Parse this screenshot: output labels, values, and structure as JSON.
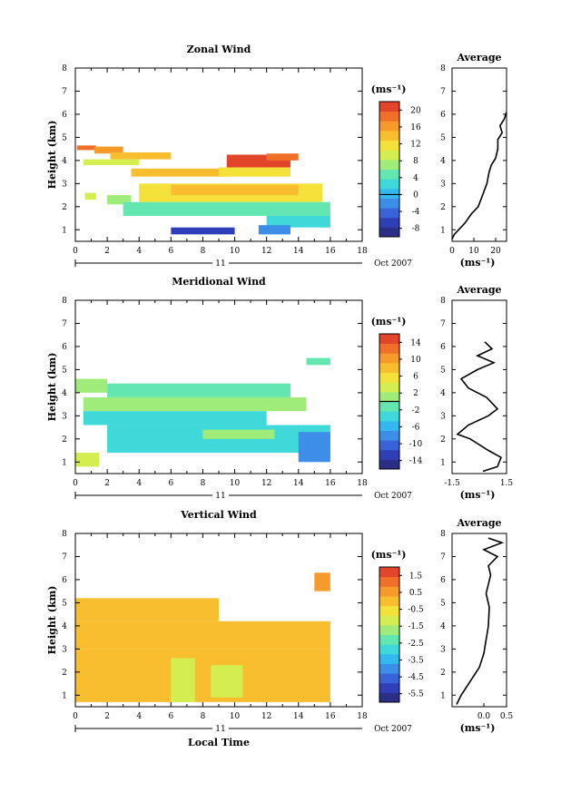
{
  "chart_data": [
    {
      "type": "heatmap",
      "title": "Zonal Wind",
      "ylabel": "Height (km)",
      "xlim": [
        0,
        18
      ],
      "ylim": [
        0.5,
        8
      ],
      "x_ticks": [
        "0",
        "2",
        "4",
        "6",
        "8",
        "10",
        "12",
        "14",
        "16",
        "18"
      ],
      "y_ticks": [
        "1",
        "2",
        "3",
        "4",
        "5",
        "6",
        "7",
        "8"
      ],
      "date_marker": "11",
      "date_label": "Oct 2007",
      "colorbar": {
        "unit": "(ms⁻¹)",
        "ticks": [
          "20",
          "16",
          "12",
          "8",
          "4",
          "0",
          "-4",
          "-8"
        ],
        "min": -10,
        "max": 22
      },
      "regions": [
        {
          "x": [
            0.1,
            1.3
          ],
          "y": [
            4.45,
            4.65
          ],
          "value": 19
        },
        {
          "x": [
            1.2,
            3.0
          ],
          "y": [
            4.3,
            4.6
          ],
          "value": 17
        },
        {
          "x": [
            2.2,
            6.0
          ],
          "y": [
            4.05,
            4.35
          ],
          "value": 13
        },
        {
          "x": [
            0.5,
            4.0
          ],
          "y": [
            3.8,
            4.05
          ],
          "value": 10
        },
        {
          "x": [
            3.5,
            9.5
          ],
          "y": [
            3.3,
            3.65
          ],
          "value": 14
        },
        {
          "x": [
            9.0,
            13.5
          ],
          "y": [
            3.3,
            3.7
          ],
          "value": 12
        },
        {
          "x": [
            9.5,
            13.5
          ],
          "y": [
            3.7,
            4.25
          ],
          "value": 20
        },
        {
          "x": [
            12.0,
            14.0
          ],
          "y": [
            4.0,
            4.3
          ],
          "value": 18
        },
        {
          "x": [
            0.6,
            1.3
          ],
          "y": [
            2.3,
            2.6
          ],
          "value": 9
        },
        {
          "x": [
            2.0,
            3.5
          ],
          "y": [
            2.1,
            2.5
          ],
          "value": 7
        },
        {
          "x": [
            4.0,
            15.5
          ],
          "y": [
            2.2,
            3.0
          ],
          "value": 11
        },
        {
          "x": [
            6.0,
            14.0
          ],
          "y": [
            2.5,
            2.95
          ],
          "value": 13
        },
        {
          "x": [
            3.0,
            16.0
          ],
          "y": [
            1.6,
            2.2
          ],
          "value": 5
        },
        {
          "x": [
            12.0,
            16.0
          ],
          "y": [
            1.1,
            1.6
          ],
          "value": 2
        },
        {
          "x": [
            6.0,
            10.0
          ],
          "y": [
            0.8,
            1.1
          ],
          "value": -6
        },
        {
          "x": [
            11.5,
            13.5
          ],
          "y": [
            0.8,
            1.2
          ],
          "value": -3
        }
      ],
      "profile": {
        "title": "Average",
        "xlabel": "(ms⁻¹)",
        "xlim": [
          0,
          25
        ],
        "x_ticks": [
          "0",
          "10",
          "20"
        ],
        "points": [
          [
            0,
            0.6
          ],
          [
            1,
            0.8
          ],
          [
            3,
            1.0
          ],
          [
            6,
            1.3
          ],
          [
            9,
            1.7
          ],
          [
            12,
            2.0
          ],
          [
            14,
            2.5
          ],
          [
            16,
            3.0
          ],
          [
            17,
            3.5
          ],
          [
            18,
            3.8
          ],
          [
            20,
            4.1
          ],
          [
            21,
            4.5
          ],
          [
            21,
            4.9
          ],
          [
            23,
            5.2
          ],
          [
            22,
            5.5
          ],
          [
            24,
            5.8
          ],
          [
            25,
            6.1
          ]
        ]
      }
    },
    {
      "type": "heatmap",
      "title": "Meridional Wind",
      "ylabel": "Height (km)",
      "xlim": [
        0,
        18
      ],
      "ylim": [
        0.5,
        8
      ],
      "x_ticks": [
        "0",
        "2",
        "4",
        "6",
        "8",
        "10",
        "12",
        "14",
        "16",
        "18"
      ],
      "y_ticks": [
        "1",
        "2",
        "3",
        "4",
        "5",
        "6",
        "7",
        "8"
      ],
      "date_marker": "11",
      "date_label": "Oct 2007",
      "colorbar": {
        "unit": "(ms⁻¹)",
        "ticks": [
          "14",
          "10",
          "6",
          "2",
          "-2",
          "-6",
          "-10",
          "-14"
        ],
        "min": -16,
        "max": 16
      },
      "regions": [
        {
          "x": [
            0.0,
            2.0
          ],
          "y": [
            4.0,
            4.6
          ],
          "value": 2
        },
        {
          "x": [
            2.0,
            13.5
          ],
          "y": [
            3.8,
            4.4
          ],
          "value": -1
        },
        {
          "x": [
            0.5,
            14.5
          ],
          "y": [
            3.2,
            3.8
          ],
          "value": 0
        },
        {
          "x": [
            0.5,
            12.0
          ],
          "y": [
            2.6,
            3.2
          ],
          "value": -3
        },
        {
          "x": [
            2.0,
            16.0
          ],
          "y": [
            1.4,
            2.6
          ],
          "value": -4
        },
        {
          "x": [
            8.0,
            12.5
          ],
          "y": [
            2.0,
            2.4
          ],
          "value": 1
        },
        {
          "x": [
            14.0,
            16.0
          ],
          "y": [
            1.0,
            2.3
          ],
          "value": -9
        },
        {
          "x": [
            14.5,
            16.0
          ],
          "y": [
            5.2,
            5.5
          ],
          "value": -1
        },
        {
          "x": [
            0.0,
            1.5
          ],
          "y": [
            0.8,
            1.4
          ],
          "value": 3
        }
      ],
      "profile": {
        "title": "Average",
        "xlabel": "(ms⁻¹)",
        "xlim": [
          -1.5,
          1.5
        ],
        "x_ticks": [
          "-1.5",
          "1.5"
        ],
        "points": [
          [
            0.2,
            0.6
          ],
          [
            1.0,
            0.8
          ],
          [
            1.2,
            1.2
          ],
          [
            0.5,
            1.5
          ],
          [
            -0.5,
            2.0
          ],
          [
            -1.2,
            2.2
          ],
          [
            -0.6,
            2.6
          ],
          [
            0.5,
            3.0
          ],
          [
            1.0,
            3.3
          ],
          [
            0.4,
            3.8
          ],
          [
            -0.6,
            4.2
          ],
          [
            -1.0,
            4.6
          ],
          [
            -0.1,
            5.0
          ],
          [
            0.8,
            5.3
          ],
          [
            -0.1,
            5.6
          ],
          [
            0.7,
            5.9
          ],
          [
            0.3,
            6.2
          ]
        ]
      }
    },
    {
      "type": "heatmap",
      "title": "Vertical Wind",
      "ylabel": "Height (km)",
      "xlabel": "Local Time",
      "xlim": [
        0,
        18
      ],
      "ylim": [
        0.5,
        8
      ],
      "x_ticks": [
        "0",
        "2",
        "4",
        "6",
        "8",
        "10",
        "12",
        "14",
        "16",
        "18"
      ],
      "y_ticks": [
        "1",
        "2",
        "3",
        "4",
        "5",
        "6",
        "7",
        "8"
      ],
      "date_marker": "11",
      "date_label": "Oct 2007",
      "colorbar": {
        "unit": "(ms⁻¹)",
        "ticks": [
          "1.5",
          "0.5",
          "-0.5",
          "-1.5",
          "-2.5",
          "-3.5",
          "-4.5",
          "-5.5"
        ],
        "min": -6,
        "max": 2
      },
      "regions": [
        {
          "x": [
            0.0,
            16.0
          ],
          "y": [
            0.7,
            3.0
          ],
          "value": -0.2
        },
        {
          "x": [
            0.0,
            16.0
          ],
          "y": [
            3.0,
            4.2
          ],
          "value": 0.1
        },
        {
          "x": [
            0.0,
            9.0
          ],
          "y": [
            4.2,
            5.2
          ],
          "value": 0.0
        },
        {
          "x": [
            6.0,
            7.5
          ],
          "y": [
            0.7,
            2.6
          ],
          "value": -1.2
        },
        {
          "x": [
            8.5,
            10.5
          ],
          "y": [
            0.9,
            2.3
          ],
          "value": -1.0
        },
        {
          "x": [
            15.0,
            16.0
          ],
          "y": [
            5.5,
            6.3
          ],
          "value": 0.3
        }
      ],
      "profile": {
        "title": "Average",
        "xlabel": "(ms⁻¹)",
        "xlim": [
          -0.7,
          0.5
        ],
        "x_ticks": [
          "0.0",
          "0.5"
        ],
        "points": [
          [
            -0.6,
            0.6
          ],
          [
            -0.5,
            1.0
          ],
          [
            -0.3,
            1.6
          ],
          [
            -0.1,
            2.2
          ],
          [
            0.0,
            2.8
          ],
          [
            0.05,
            3.4
          ],
          [
            0.1,
            4.0
          ],
          [
            0.12,
            4.8
          ],
          [
            0.05,
            5.4
          ],
          [
            0.15,
            6.2
          ],
          [
            0.1,
            6.6
          ],
          [
            0.3,
            7.0
          ],
          [
            0.0,
            7.3
          ],
          [
            0.4,
            7.6
          ],
          [
            0.1,
            7.8
          ]
        ]
      }
    }
  ]
}
